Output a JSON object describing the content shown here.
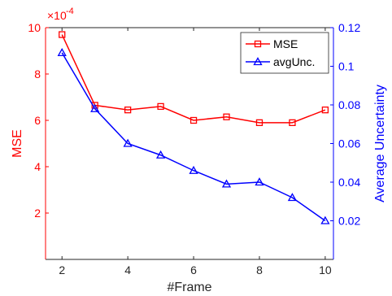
{
  "chart_data": {
    "type": "line",
    "x_label": "#Frame",
    "x_ticks": [
      2,
      4,
      6,
      8,
      10
    ],
    "x_range": [
      1.5,
      10.25
    ],
    "left_axis": {
      "label": "MSE",
      "color": "#ff0000",
      "multiplier": "×10",
      "exponent": "-4",
      "range": [
        0,
        10
      ],
      "ticks": [
        2,
        4,
        6,
        8,
        10
      ]
    },
    "right_axis": {
      "label": "Average Uncertainty",
      "color": "#0000ff",
      "range": [
        0,
        0.12
      ],
      "ticks": [
        "0.02",
        "0.04",
        "0.06",
        "0.08",
        "0.1",
        "0.12"
      ]
    },
    "series": [
      {
        "name": "MSE",
        "axis": "left",
        "color": "#ff0000",
        "marker": "square",
        "x": [
          2,
          3,
          4,
          5,
          6,
          7,
          8,
          9,
          10
        ],
        "y": [
          9.7,
          6.65,
          6.45,
          6.6,
          6.0,
          6.15,
          5.9,
          5.9,
          6.45
        ]
      },
      {
        "name": "avgUnc.",
        "axis": "right",
        "color": "#0000ff",
        "marker": "triangle",
        "x": [
          2,
          3,
          4,
          5,
          6,
          7,
          8,
          9,
          10
        ],
        "y": [
          0.107,
          0.078,
          0.06,
          0.054,
          0.046,
          0.039,
          0.04,
          0.032,
          0.02
        ]
      }
    ],
    "grid": false,
    "legend_position": "top-right"
  }
}
